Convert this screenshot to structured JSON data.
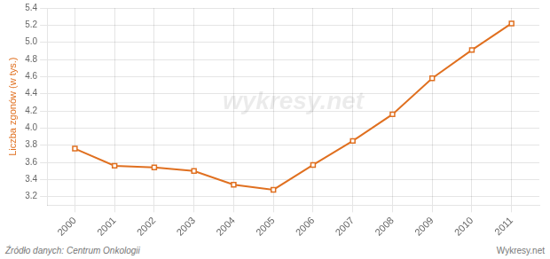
{
  "chart_data": {
    "type": "line",
    "x": [
      2000,
      2001,
      2002,
      2003,
      2004,
      2005,
      2006,
      2007,
      2008,
      2009,
      2010,
      2011
    ],
    "values": [
      3.76,
      3.56,
      3.54,
      3.5,
      3.34,
      3.28,
      3.57,
      3.85,
      4.16,
      4.58,
      4.91,
      5.22
    ],
    "color": "#e07020",
    "marker": "square",
    "ylabel": "Liczba zgonów (w tys.)",
    "xlim": [
      1999.3,
      2011.7
    ],
    "xticks": [
      2000,
      2001,
      2002,
      2003,
      2004,
      2005,
      2006,
      2007,
      2008,
      2009,
      2010,
      2011
    ],
    "ylim": [
      3.1,
      5.4
    ],
    "yticks": [
      3.2,
      3.4,
      3.6,
      3.8,
      {
        "value": 4.0,
        "label": "4.0"
      },
      4.2,
      4.4,
      4.6,
      4.8,
      {
        "value": 5.0,
        "label": "5.0"
      },
      5.2,
      5.4
    ],
    "grid": true,
    "annotations": [
      "wykresy.net",
      "Źródło danych:  Centrum Onkologii",
      "Wykresy.net"
    ]
  }
}
